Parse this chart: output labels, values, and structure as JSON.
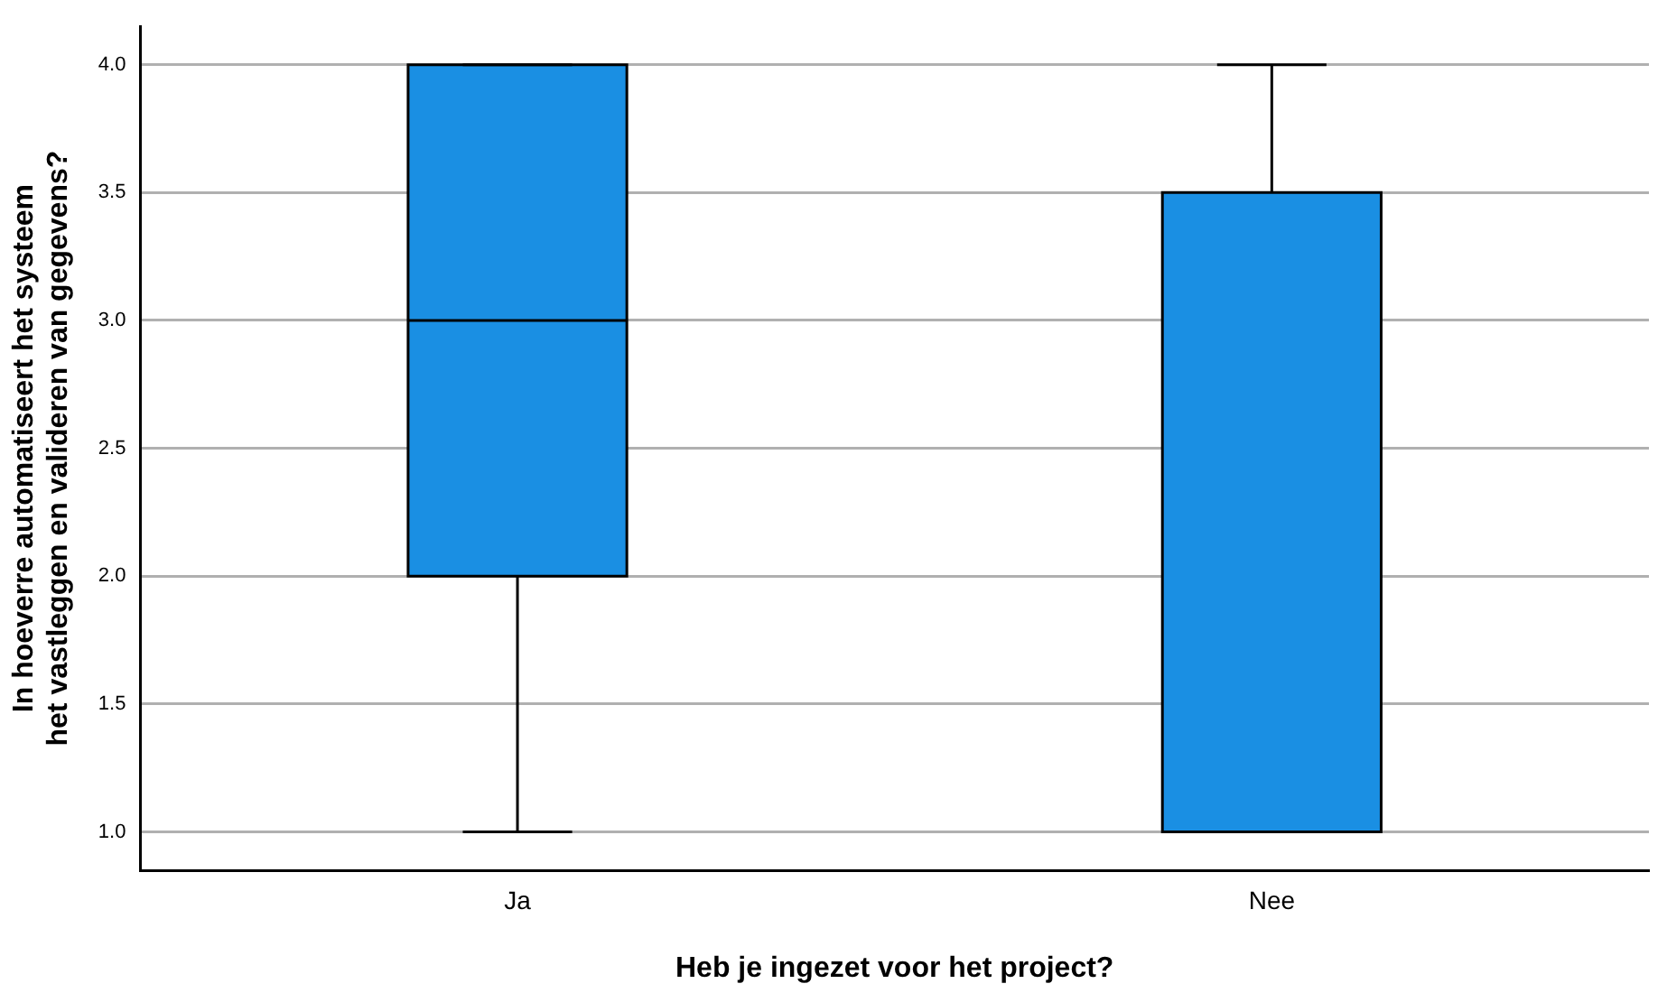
{
  "chart_data": {
    "type": "box",
    "xlabel": "Heb je ingezet voor het project?",
    "ylabel": "In hoeverre automatiseert het systeem het vastleggen en valideren van gegevens?",
    "categories": [
      "Ja",
      "Nee"
    ],
    "boxes": [
      {
        "low": 1,
        "q1": 2,
        "median": 3,
        "q3": 4,
        "high": 4
      },
      {
        "low": 1,
        "q1": 1,
        "median": 1,
        "q3": 3.5,
        "high": 4
      }
    ],
    "color": "#1a8fe3",
    "ylim": [
      0.85,
      4.15
    ],
    "yticks": [
      {
        "value": 1,
        "label": "1.0"
      },
      {
        "value": 1.5,
        "label": "1.5"
      },
      {
        "value": 2,
        "label": "2.0"
      },
      {
        "value": 2.5,
        "label": "2.5"
      },
      {
        "value": 3,
        "label": "3.0"
      },
      {
        "value": 3.5,
        "label": "3.5"
      },
      {
        "value": 4,
        "label": "4.0"
      }
    ],
    "grid": "y",
    "legend": false
  }
}
